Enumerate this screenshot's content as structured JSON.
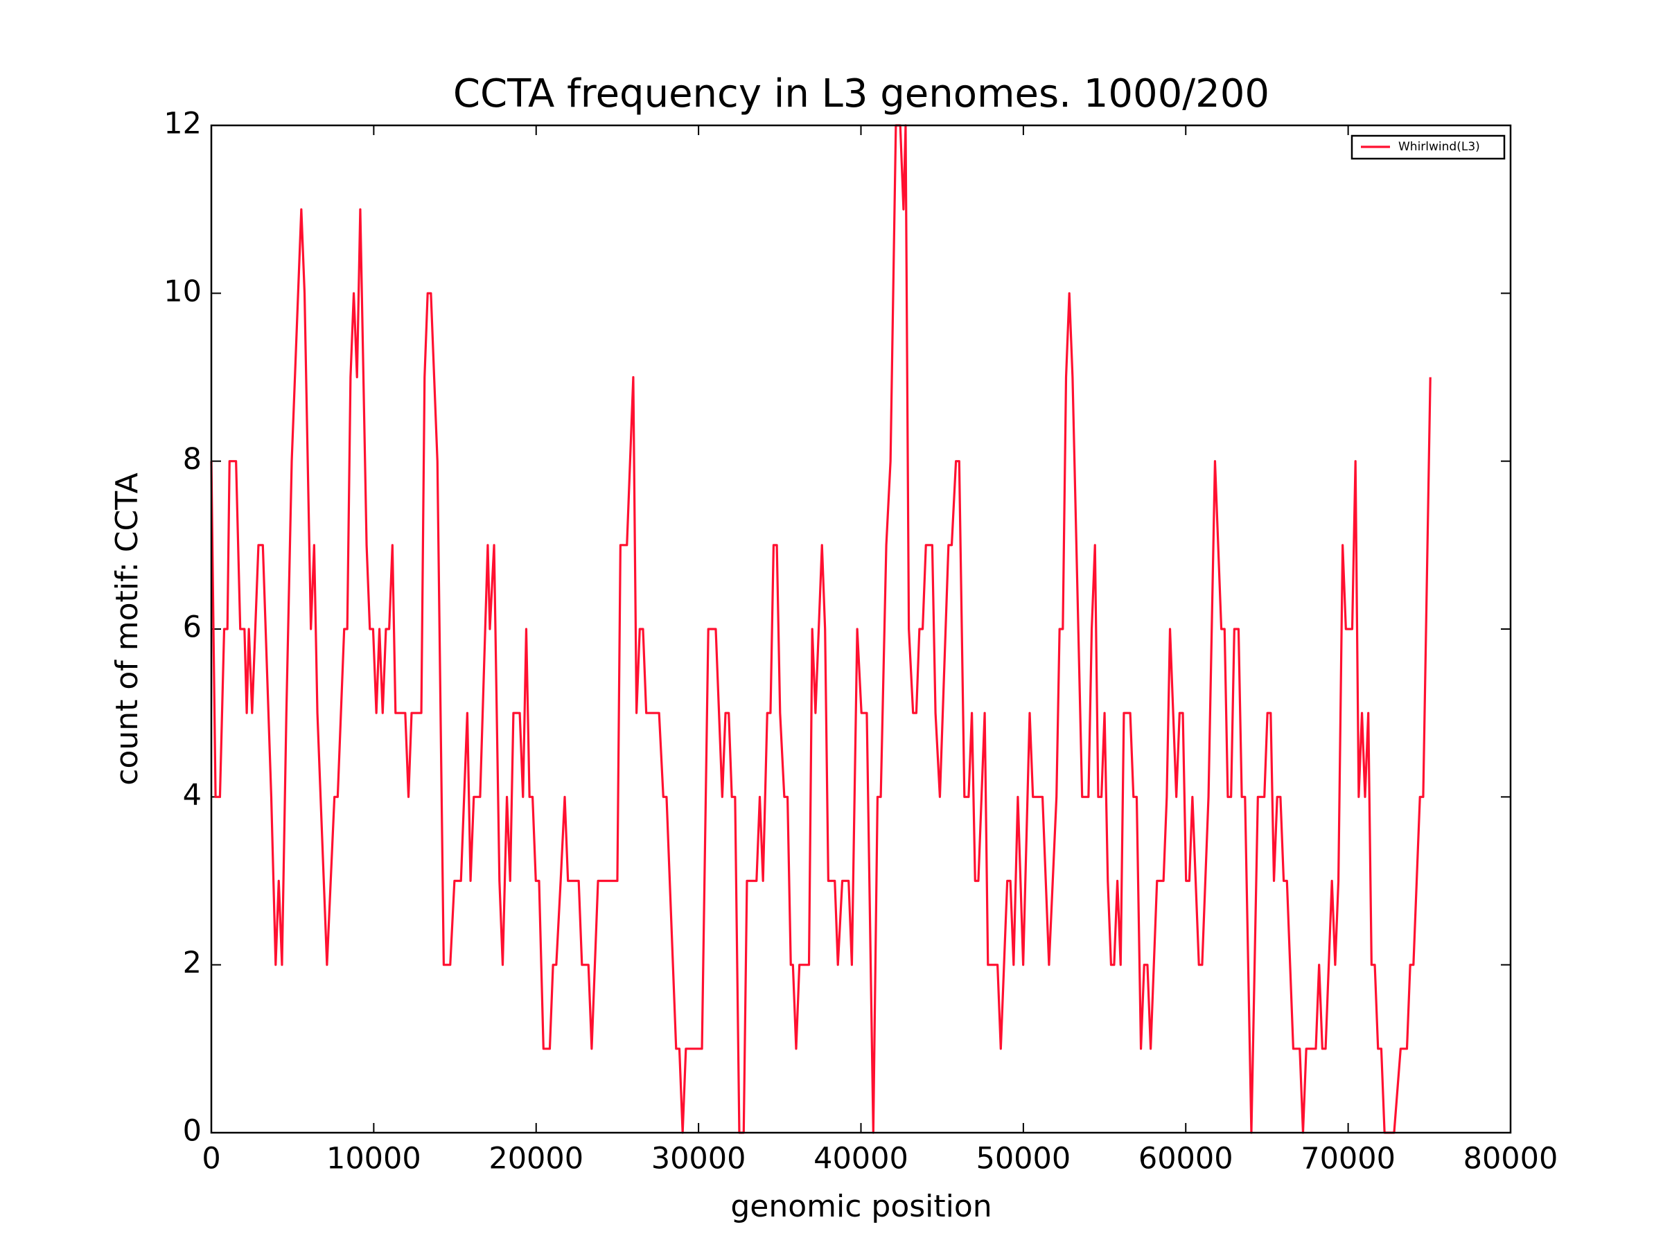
{
  "chart_data": {
    "type": "line",
    "title": "CCTA frequency in L3 genomes. 1000/200",
    "x_label": "genomic position",
    "y_label": "count of motif: CCTA",
    "xlim": [
      0,
      80000
    ],
    "ylim": [
      0,
      12
    ],
    "xticks": [
      0,
      10000,
      20000,
      30000,
      40000,
      50000,
      60000,
      70000,
      80000
    ],
    "yticks": [
      0,
      2,
      4,
      6,
      8,
      10,
      12
    ],
    "grid": false,
    "legend": "upper right",
    "x": [
      0,
      260,
      530,
      790,
      990,
      1120,
      1520,
      1780,
      2040,
      2180,
      2310,
      2510,
      2900,
      3170,
      3690,
      3960,
      4150,
      4350,
      4620,
      4950,
      5540,
      5740,
      6130,
      6330,
      6530,
      7120,
      7580,
      7780,
      8180,
      8370,
      8570,
      8770,
      8970,
      9170,
      9560,
      9760,
      9960,
      10160,
      10350,
      10550,
      10750,
      10950,
      11150,
      11340,
      11940,
      12140,
      12330,
      12930,
      13130,
      13320,
      13520,
      13920,
      14310,
      14710,
      14970,
      15370,
      15760,
      15960,
      16160,
      16550,
      17020,
      17150,
      17410,
      17740,
      17940,
      18200,
      18400,
      18600,
      18990,
      19190,
      19390,
      19590,
      19780,
      19980,
      20180,
      20450,
      20840,
      21040,
      21240,
      21510,
      21760,
      21960,
      22620,
      22820,
      23220,
      23420,
      23810,
      25000,
      25190,
      25590,
      25980,
      26180,
      26380,
      26580,
      26780,
      27570,
      27830,
      28030,
      28620,
      28820,
      29020,
      29220,
      30210,
      30600,
      31060,
      31460,
      31660,
      31860,
      32050,
      32250,
      32510,
      32780,
      32980,
      33570,
      33770,
      33970,
      34230,
      34430,
      34620,
      34820,
      35020,
      35280,
      35480,
      35680,
      35810,
      36010,
      36210,
      36800,
      37000,
      37200,
      37600,
      37790,
      37990,
      38390,
      38580,
      38850,
      39240,
      39440,
      39770,
      40030,
      40360,
      40760,
      41020,
      41220,
      41560,
      41820,
      42150,
      42420,
      42620,
      42750,
      42950,
      43210,
      43410,
      43600,
      43800,
      44000,
      44390,
      44590,
      44860,
      45390,
      45590,
      45850,
      46050,
      46370,
      46630,
      46830,
      47030,
      47230,
      47620,
      47820,
      48410,
      48610,
      49010,
      49200,
      49400,
      49660,
      49990,
      50390,
      50590,
      51180,
      51580,
      52040,
      52230,
      52430,
      52630,
      52830,
      53030,
      53620,
      54010,
      54210,
      54410,
      54610,
      54810,
      55000,
      55200,
      55400,
      55590,
      55790,
      55990,
      56190,
      56580,
      56780,
      56980,
      57240,
      57440,
      57640,
      57840,
      58230,
      58630,
      58830,
      59030,
      59420,
      59620,
      59820,
      60020,
      60220,
      60410,
      60810,
      61010,
      61400,
      61800,
      62190,
      62390,
      62590,
      62790,
      62990,
      63250,
      63450,
      63650,
      64040,
      64440,
      64840,
      65030,
      65230,
      65430,
      65630,
      65830,
      66030,
      66230,
      66620,
      67020,
      67220,
      67420,
      68010,
      68210,
      68410,
      68610,
      69000,
      69200,
      69400,
      69660,
      69860,
      70250,
      70450,
      70650,
      70850,
      71040,
      71240,
      71440,
      71640,
      71840,
      72040,
      72240,
      72830,
      73230,
      73620,
      73820,
      74020,
      74420,
      74620,
      75060
    ],
    "series": [
      {
        "name": "Whirlwind(L3)",
        "color": "#ff1030",
        "values": [
          8,
          4,
          4,
          6,
          6,
          8,
          8,
          6,
          6,
          5,
          6,
          5,
          7,
          7,
          4,
          2,
          3,
          2,
          5,
          8,
          11,
          10,
          6,
          7,
          5,
          2,
          4,
          4,
          6,
          6,
          9,
          10,
          9,
          11,
          7,
          6,
          6,
          5,
          6,
          5,
          6,
          6,
          7,
          5,
          5,
          4,
          5,
          5,
          9,
          10,
          10,
          8,
          2,
          2,
          3,
          3,
          5,
          3,
          4,
          4,
          7,
          6,
          7,
          3,
          2,
          4,
          3,
          5,
          5,
          4,
          6,
          4,
          4,
          3,
          3,
          1,
          1,
          2,
          2,
          3,
          4,
          3,
          3,
          2,
          2,
          1,
          3,
          3,
          7,
          7,
          9,
          5,
          6,
          6,
          5,
          5,
          4,
          4,
          1,
          1,
          0,
          1,
          1,
          6,
          6,
          4,
          5,
          5,
          4,
          4,
          0,
          0,
          3,
          3,
          4,
          3,
          5,
          5,
          7,
          7,
          5,
          4,
          4,
          2,
          2,
          1,
          2,
          2,
          6,
          5,
          7,
          6,
          3,
          3,
          2,
          3,
          3,
          2,
          6,
          5,
          5,
          0,
          4,
          4,
          7,
          8,
          12,
          12,
          11,
          12,
          6,
          5,
          5,
          6,
          6,
          7,
          7,
          5,
          4,
          7,
          7,
          8,
          8,
          4,
          4,
          5,
          3,
          3,
          5,
          2,
          2,
          1,
          3,
          3,
          2,
          4,
          2,
          5,
          4,
          4,
          2,
          4,
          6,
          6,
          9,
          10,
          9,
          4,
          4,
          6,
          7,
          4,
          4,
          5,
          3,
          2,
          2,
          3,
          2,
          5,
          5,
          4,
          4,
          1,
          2,
          2,
          1,
          3,
          3,
          4,
          6,
          4,
          5,
          5,
          3,
          3,
          4,
          2,
          2,
          4,
          8,
          6,
          6,
          4,
          4,
          6,
          6,
          4,
          4,
          0,
          4,
          4,
          5,
          5,
          3,
          4,
          4,
          3,
          3,
          1,
          1,
          0,
          1,
          1,
          2,
          1,
          1,
          3,
          2,
          3,
          7,
          6,
          6,
          8,
          4,
          5,
          4,
          5,
          2,
          2,
          1,
          1,
          0,
          0,
          1,
          1,
          2,
          2,
          4,
          4,
          9
        ]
      }
    ]
  }
}
